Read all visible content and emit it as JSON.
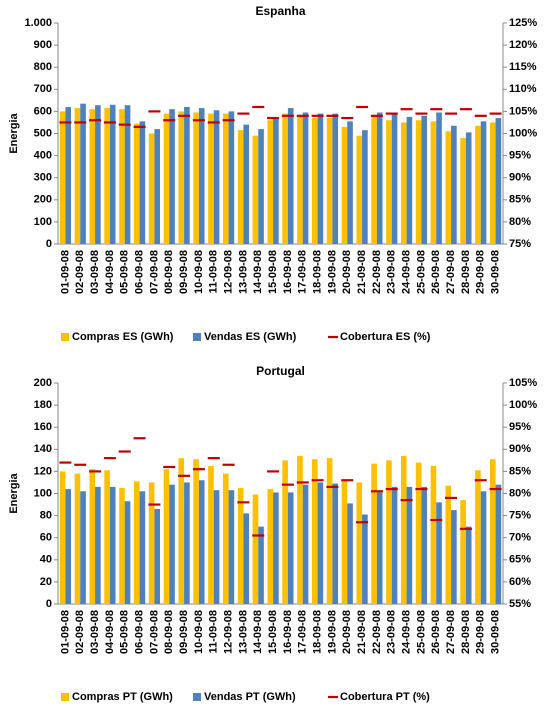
{
  "chart_data": [
    {
      "type": "bar",
      "title": "Espanha",
      "y_label": "Energia",
      "categories": [
        "01-09-08",
        "02-09-08",
        "03-09-08",
        "04-09-08",
        "05-09-08",
        "06-09-08",
        "07-09-08",
        "08-09-08",
        "09-09-08",
        "10-09-08",
        "11-09-08",
        "12-09-08",
        "13-09-08",
        "14-09-08",
        "15-09-08",
        "16-09-08",
        "17-09-08",
        "18-09-08",
        "19-09-08",
        "20-09-08",
        "21-09-08",
        "22-09-08",
        "23-09-08",
        "24-09-08",
        "25-09-08",
        "26-09-08",
        "27-09-08",
        "28-09-08",
        "29-09-08",
        "30-09-08"
      ],
      "series": [
        {
          "name": "Compras ES (GWh)",
          "color": "#FFC000",
          "values": [
            600,
            615,
            610,
            615,
            610,
            545,
            500,
            590,
            600,
            595,
            590,
            590,
            515,
            490,
            560,
            590,
            575,
            570,
            570,
            530,
            490,
            580,
            560,
            550,
            560,
            555,
            510,
            480,
            535,
            550
          ]
        },
        {
          "name": "Vendas ES (GWh)",
          "color": "#4F81BD",
          "values": [
            620,
            635,
            628,
            630,
            628,
            555,
            520,
            610,
            620,
            615,
            605,
            600,
            540,
            520,
            570,
            615,
            595,
            590,
            590,
            555,
            515,
            595,
            590,
            575,
            580,
            595,
            535,
            505,
            555,
            570
          ]
        },
        {
          "name": "Cobertura ES (%)",
          "color": "#C00000",
          "axis": "y2",
          "values": [
            102.5,
            102.5,
            103,
            102.5,
            102,
            101.5,
            105,
            103,
            104,
            103,
            102.5,
            103,
            104.5,
            106,
            103.5,
            104,
            104,
            104,
            104,
            103.5,
            106,
            104,
            104.5,
            105.5,
            104.5,
            105.5,
            104.5,
            105.5,
            104,
            104.5
          ]
        }
      ],
      "ylim": [
        0,
        1000
      ],
      "yticks": [
        0,
        100,
        200,
        300,
        400,
        500,
        600,
        700,
        800,
        900,
        {
          "value": 1000,
          "label": "1.000"
        }
      ],
      "y2lim": [
        75,
        125
      ],
      "y2ticks": [
        {
          "value": 75,
          "label": "75%"
        },
        {
          "value": 80,
          "label": "80%"
        },
        {
          "value": 85,
          "label": "85%"
        },
        {
          "value": 90,
          "label": "90%"
        },
        {
          "value": 95,
          "label": "95%"
        },
        {
          "value": 100,
          "label": "100%"
        },
        {
          "value": 105,
          "label": "105%"
        },
        {
          "value": 110,
          "label": "110%"
        },
        {
          "value": 115,
          "label": "115%"
        },
        {
          "value": 120,
          "label": "120%"
        },
        {
          "value": 125,
          "label": "125%"
        }
      ],
      "legend": "bottom"
    },
    {
      "type": "bar",
      "title": "Portugal",
      "y_label": "Energia",
      "categories": [
        "01-09-08",
        "02-09-08",
        "03-09-08",
        "04-09-08",
        "05-09-08",
        "06-09-08",
        "07-09-08",
        "08-09-08",
        "09-09-08",
        "10-09-08",
        "11-09-08",
        "12-09-08",
        "13-09-08",
        "14-09-08",
        "15-09-08",
        "16-09-08",
        "17-09-08",
        "18-09-08",
        "19-09-08",
        "20-09-08",
        "21-09-08",
        "22-09-08",
        "23-09-08",
        "24-09-08",
        "25-09-08",
        "26-09-08",
        "27-09-08",
        "28-09-08",
        "29-09-08",
        "30-09-08"
      ],
      "series": [
        {
          "name": "Compras PT (GWh)",
          "color": "#FFC000",
          "values": [
            120,
            118,
            122,
            121,
            105,
            111,
            110,
            122,
            132,
            131,
            125,
            118,
            105,
            99,
            104,
            130,
            134,
            131,
            132,
            112,
            110,
            127,
            130,
            134,
            128,
            125,
            107,
            94,
            121,
            131
          ]
        },
        {
          "name": "Vendas PT (GWh)",
          "color": "#4F81BD",
          "values": [
            104,
            102,
            106,
            106,
            93,
            102,
            86,
            108,
            110,
            112,
            103,
            103,
            82,
            70,
            101,
            101,
            108,
            110,
            109,
            91,
            81,
            101,
            106,
            106,
            106,
            92,
            85,
            70,
            102,
            108
          ]
        },
        {
          "name": "Cobertura PT (%)",
          "color": "#C00000",
          "axis": "y2",
          "values": [
            87,
            86.5,
            85,
            88,
            89.5,
            92.5,
            77.5,
            86,
            84,
            85.5,
            88,
            86.5,
            78,
            70.5,
            85,
            82,
            82.5,
            83,
            81.5,
            83,
            73.5,
            80.5,
            81,
            78.5,
            81,
            74,
            79,
            72,
            83,
            81
          ]
        }
      ],
      "ylim": [
        0,
        200
      ],
      "yticks": [
        0,
        20,
        40,
        60,
        80,
        100,
        120,
        140,
        160,
        180,
        200
      ],
      "y2lim": [
        55,
        105
      ],
      "y2ticks": [
        {
          "value": 55,
          "label": "55%"
        },
        {
          "value": 60,
          "label": "60%"
        },
        {
          "value": 65,
          "label": "65%"
        },
        {
          "value": 70,
          "label": "70%"
        },
        {
          "value": 75,
          "label": "75%"
        },
        {
          "value": 80,
          "label": "80%"
        },
        {
          "value": 85,
          "label": "85%"
        },
        {
          "value": 90,
          "label": "90%"
        },
        {
          "value": 95,
          "label": "95%"
        },
        {
          "value": 100,
          "label": "100%"
        },
        {
          "value": 105,
          "label": "105%"
        }
      ],
      "legend": "bottom"
    }
  ]
}
